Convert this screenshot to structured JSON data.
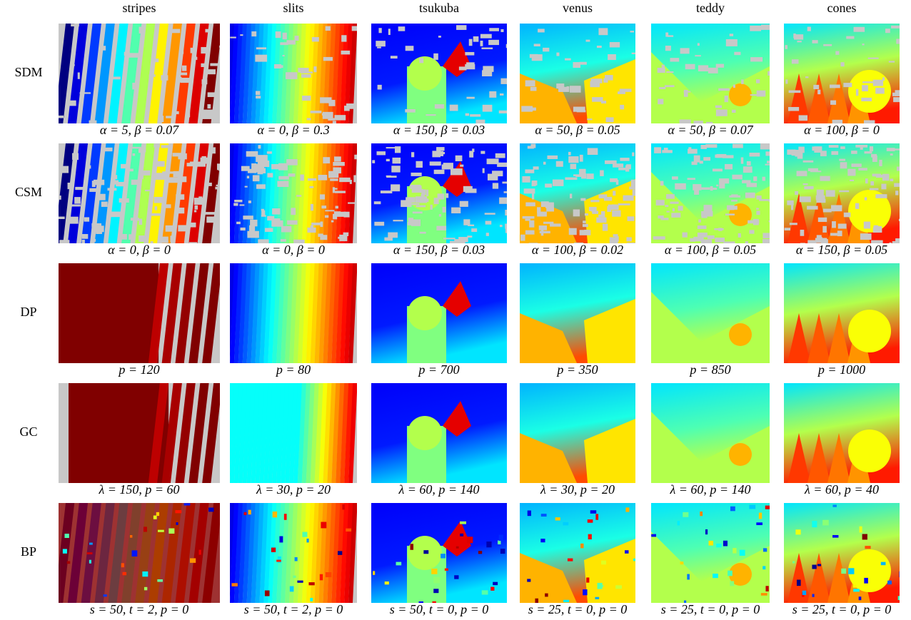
{
  "columns": [
    "stripes",
    "slits",
    "tsukuba",
    "venus",
    "teddy",
    "cones"
  ],
  "rows": [
    {
      "label": "SDM",
      "captions": [
        "α = 5, β = 0.07",
        "α = 0, β = 0.3",
        "α = 150, β = 0.03",
        "α = 50, β = 0.05",
        "α = 50, β = 0.07",
        "α = 100, β = 0"
      ]
    },
    {
      "label": "CSM",
      "captions": [
        "α = 0, β = 0",
        "α = 0, β = 0",
        "α = 150, β = 0.03",
        "α = 100, β = 0.02",
        "α = 100, β = 0.05",
        "α = 150, β = 0.05"
      ]
    },
    {
      "label": "DP",
      "captions": [
        "p = 120",
        "p = 80",
        "p = 700",
        "p = 350",
        "p = 850",
        "p = 1000"
      ]
    },
    {
      "label": "GC",
      "captions": [
        "λ = 150, p = 60",
        "λ = 30, p = 20",
        "λ = 60, p = 140",
        "λ = 30, p = 20",
        "λ = 60, p = 140",
        "λ = 60, p = 40"
      ]
    },
    {
      "label": "BP",
      "captions": [
        "s = 50, t = 2, p = 0",
        "s = 50, t = 2, p = 0",
        "s = 50, t = 0, p = 0",
        "s = 25, t = 0, p = 0",
        "s = 25, t = 0, p = 0",
        "s = 25, t = 0, p = 0"
      ]
    }
  ]
}
